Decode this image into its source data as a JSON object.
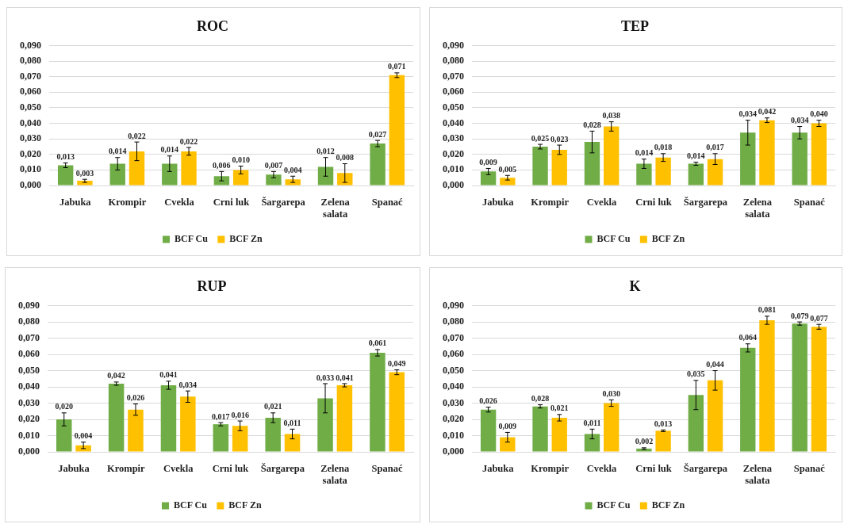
{
  "chart_data": [
    {
      "type": "bar",
      "title": "ROC",
      "categories": [
        "Jabuka",
        "Krompir",
        "Cvekla",
        "Crni luk",
        "Šargarepa",
        "Zelena salata",
        "Spanać"
      ],
      "series": [
        {
          "name": "BCF Cu",
          "color": "#70ad47",
          "values": [
            0.013,
            0.014,
            0.014,
            0.006,
            0.007,
            0.012,
            0.027
          ],
          "errors": [
            0.0015,
            0.004,
            0.005,
            0.003,
            0.002,
            0.006,
            0.002
          ],
          "value_labels": [
            "0,013",
            "0,014",
            "0,014",
            "0,006",
            "0,007",
            "0,012",
            "0,027"
          ]
        },
        {
          "name": "BCF Zn",
          "color": "#ffc000",
          "values": [
            0.003,
            0.022,
            0.022,
            0.01,
            0.004,
            0.008,
            0.071
          ],
          "errors": [
            0.001,
            0.006,
            0.0025,
            0.0025,
            0.002,
            0.006,
            0.0015
          ],
          "value_labels": [
            "0,003",
            "0,022",
            "0,022",
            "0,010",
            "0,004",
            "0,008",
            "0,071"
          ]
        }
      ],
      "ylim": [
        0,
        0.09
      ],
      "yticks": [
        {
          "value": 0,
          "label": "0,000"
        },
        {
          "value": 0.01,
          "label": "0,010"
        },
        {
          "value": 0.02,
          "label": "0,020"
        },
        {
          "value": 0.03,
          "label": "0,030"
        },
        {
          "value": 0.04,
          "label": "0,040"
        },
        {
          "value": 0.05,
          "label": "0,050"
        },
        {
          "value": 0.06,
          "label": "0,060"
        },
        {
          "value": 0.07,
          "label": "0,070"
        },
        {
          "value": 0.08,
          "label": "0,080"
        },
        {
          "value": 0.09,
          "label": "0,090"
        }
      ],
      "grid": "y",
      "legend": "bottom"
    },
    {
      "type": "bar",
      "title": "TEP",
      "categories": [
        "Jabuka",
        "Krompir",
        "Cvekla",
        "Crni luk",
        "Šargarepa",
        "Zelena salata",
        "Spanać"
      ],
      "series": [
        {
          "name": "BCF Cu",
          "color": "#70ad47",
          "values": [
            0.009,
            0.025,
            0.028,
            0.014,
            0.014,
            0.034,
            0.034
          ],
          "errors": [
            0.002,
            0.0015,
            0.007,
            0.003,
            0.001,
            0.008,
            0.004
          ],
          "value_labels": [
            "0,009",
            "0,025",
            "0,028",
            "0,014",
            "0,014",
            "0,034",
            "0,034"
          ]
        },
        {
          "name": "BCF Zn",
          "color": "#ffc000",
          "values": [
            0.005,
            0.023,
            0.038,
            0.018,
            0.017,
            0.042,
            0.04
          ],
          "errors": [
            0.0015,
            0.003,
            0.003,
            0.0025,
            0.0035,
            0.0015,
            0.002
          ],
          "value_labels": [
            "0,005",
            "0,023",
            "0,038",
            "0,018",
            "0,017",
            "0,042",
            "0,040"
          ]
        }
      ],
      "ylim": [
        0,
        0.09
      ],
      "yticks": [
        {
          "value": 0,
          "label": "0,000"
        },
        {
          "value": 0.01,
          "label": "0,010"
        },
        {
          "value": 0.02,
          "label": "0,020"
        },
        {
          "value": 0.03,
          "label": "0,030"
        },
        {
          "value": 0.04,
          "label": "0,040"
        },
        {
          "value": 0.05,
          "label": "0,050"
        },
        {
          "value": 0.06,
          "label": "0,060"
        },
        {
          "value": 0.07,
          "label": "0,070"
        },
        {
          "value": 0.08,
          "label": "0,080"
        },
        {
          "value": 0.09,
          "label": "0,090"
        }
      ],
      "grid": "y",
      "legend": "bottom"
    },
    {
      "type": "bar",
      "title": "RUP",
      "categories": [
        "Jabuka",
        "Krompir",
        "Cvekla",
        "Crni luk",
        "Šargarepa",
        "Zelena salata",
        "Spanać"
      ],
      "series": [
        {
          "name": "BCF Cu",
          "color": "#70ad47",
          "values": [
            0.02,
            0.042,
            0.041,
            0.017,
            0.021,
            0.033,
            0.061
          ],
          "errors": [
            0.004,
            0.001,
            0.0025,
            0.001,
            0.003,
            0.009,
            0.002
          ],
          "value_labels": [
            "0,020",
            "0,042",
            "0,041",
            "0,017",
            "0,021",
            "0,033",
            "0,061"
          ]
        },
        {
          "name": "BCF Zn",
          "color": "#ffc000",
          "values": [
            0.004,
            0.026,
            0.034,
            0.016,
            0.011,
            0.041,
            0.049
          ],
          "errors": [
            0.002,
            0.0035,
            0.0035,
            0.003,
            0.003,
            0.001,
            0.0015
          ],
          "value_labels": [
            "0,004",
            "0,026",
            "0,034",
            "0,016",
            "0,011",
            "0,041",
            "0,049"
          ]
        }
      ],
      "ylim": [
        0,
        0.09
      ],
      "yticks": [
        {
          "value": 0,
          "label": "0,000"
        },
        {
          "value": 0.01,
          "label": "0,010"
        },
        {
          "value": 0.02,
          "label": "0,020"
        },
        {
          "value": 0.03,
          "label": "0,030"
        },
        {
          "value": 0.04,
          "label": "0,040"
        },
        {
          "value": 0.05,
          "label": "0,050"
        },
        {
          "value": 0.06,
          "label": "0,060"
        },
        {
          "value": 0.07,
          "label": "0,070"
        },
        {
          "value": 0.08,
          "label": "0,080"
        },
        {
          "value": 0.09,
          "label": "0,090"
        }
      ],
      "grid": "y",
      "legend": "bottom"
    },
    {
      "type": "bar",
      "title": "K",
      "categories": [
        "Jabuka",
        "Krompir",
        "Cvekla",
        "Crni luk",
        "Šargarepa",
        "Zelena salata",
        "Spanać"
      ],
      "series": [
        {
          "name": "BCF Cu",
          "color": "#70ad47",
          "values": [
            0.026,
            0.028,
            0.011,
            0.002,
            0.035,
            0.064,
            0.079
          ],
          "errors": [
            0.0015,
            0.001,
            0.003,
            0.0005,
            0.009,
            0.0025,
            0.001
          ],
          "value_labels": [
            "0,026",
            "0,028",
            "0,011",
            "0,002",
            "0,035",
            "0,064",
            "0,079"
          ]
        },
        {
          "name": "BCF Zn",
          "color": "#ffc000",
          "values": [
            0.009,
            0.021,
            0.03,
            0.013,
            0.044,
            0.081,
            0.077
          ],
          "errors": [
            0.003,
            0.002,
            0.002,
            0.0005,
            0.006,
            0.0025,
            0.0015
          ],
          "value_labels": [
            "0,009",
            "0,021",
            "0,030",
            "0,013",
            "0,044",
            "0,081",
            "0,077"
          ]
        }
      ],
      "ylim": [
        0,
        0.09
      ],
      "yticks": [
        {
          "value": 0,
          "label": "0,000"
        },
        {
          "value": 0.01,
          "label": "0,010"
        },
        {
          "value": 0.02,
          "label": "0,020"
        },
        {
          "value": 0.03,
          "label": "0,030"
        },
        {
          "value": 0.04,
          "label": "0,040"
        },
        {
          "value": 0.05,
          "label": "0,050"
        },
        {
          "value": 0.06,
          "label": "0,060"
        },
        {
          "value": 0.07,
          "label": "0,070"
        },
        {
          "value": 0.08,
          "label": "0,080"
        },
        {
          "value": 0.09,
          "label": "0,090"
        }
      ],
      "grid": "y",
      "legend": "bottom"
    }
  ]
}
